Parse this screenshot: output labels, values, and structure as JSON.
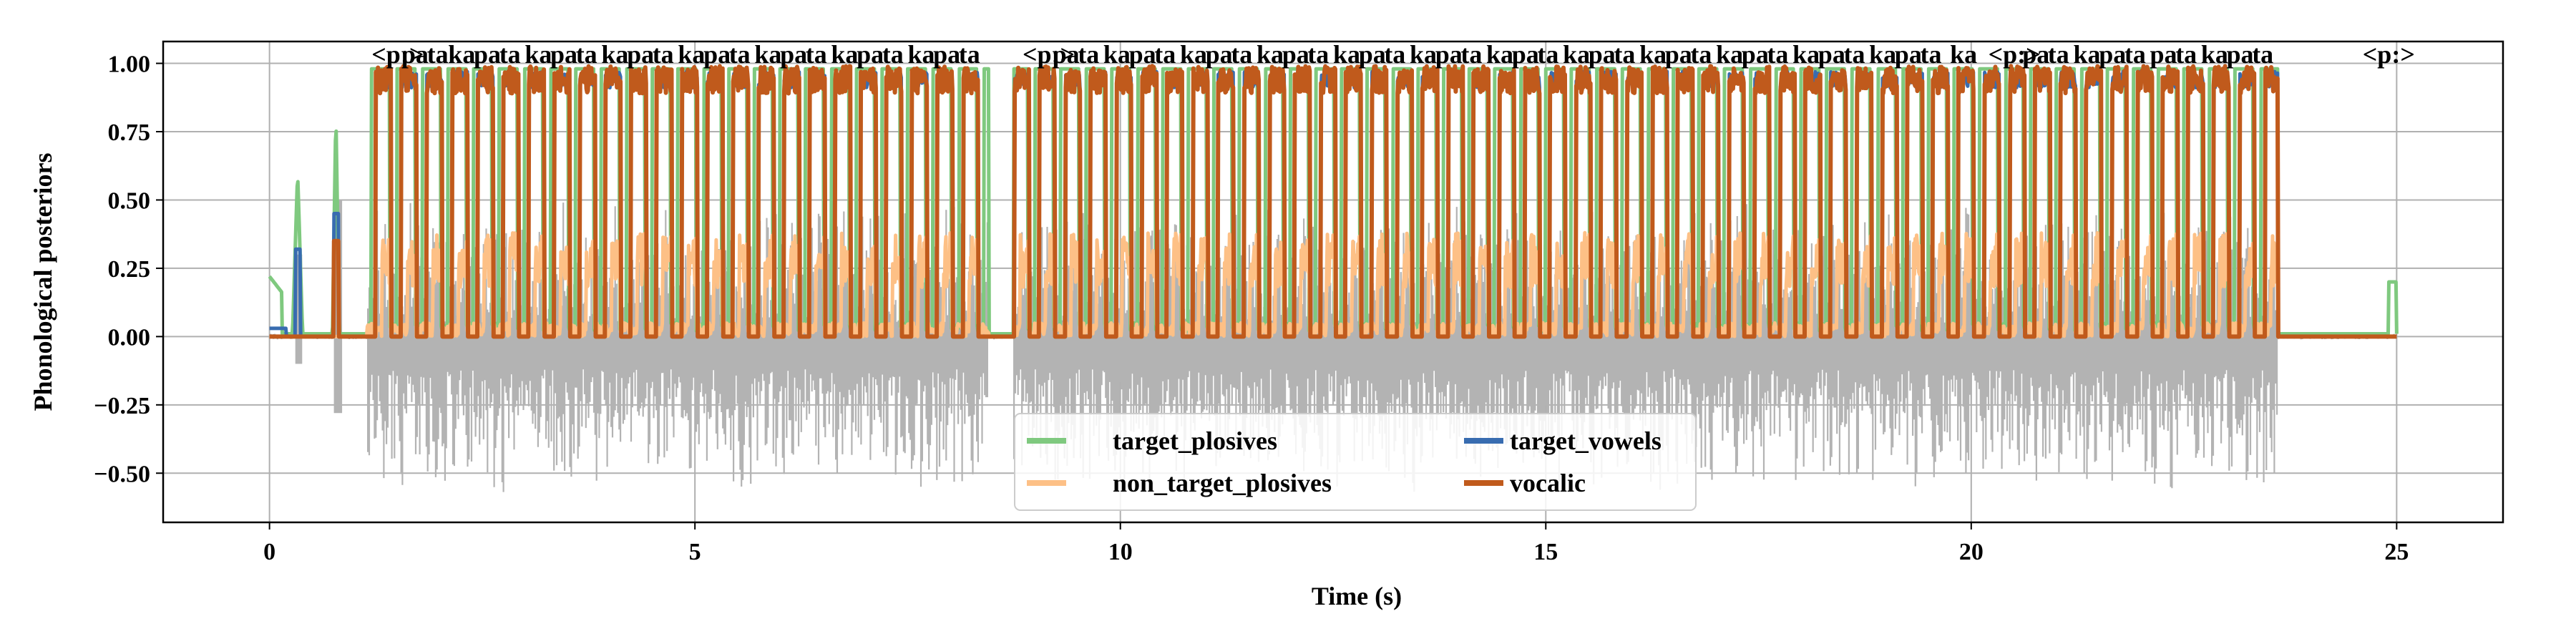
{
  "chart_data": {
    "type": "line",
    "xlabel": "Time (s)",
    "ylabel": "Phonological posteriors",
    "xlim": [
      -1.25,
      26.25
    ],
    "ylim": [
      -0.68,
      1.08
    ],
    "xticks": [
      0,
      5,
      10,
      15,
      20,
      25
    ],
    "xtick_labels": [
      "0",
      "5",
      "10",
      "15",
      "20",
      "25"
    ],
    "yticks": [
      -0.5,
      -0.25,
      0.0,
      0.25,
      0.5,
      0.75,
      1.0
    ],
    "ytick_labels": [
      "−0.50",
      "−0.25",
      "0.00",
      "0.25",
      "0.50",
      "0.75",
      "1.00"
    ],
    "grid": true,
    "legend_position": "bottom-center",
    "legend_columns": 2,
    "series": [
      {
        "name": "target_plosives",
        "color": "#7fc97f"
      },
      {
        "name": "non_target_plosives",
        "color": "#fdc086"
      },
      {
        "name": "target_vowels",
        "color": "#386cb0"
      },
      {
        "name": "vocalic",
        "color": "#c05a1c"
      }
    ],
    "waveform_color": "#b3b3b3",
    "waveform_range": [
      0.0,
      25.0
    ],
    "speech_segments": [
      [
        1.15,
        8.45
      ],
      [
        8.75,
        23.6
      ]
    ],
    "waveform_min_amplitude": -0.6,
    "waveform_max_amplitude": 0.7,
    "phone_labels": [
      {
        "t": 1.2,
        "text": "<p:>"
      },
      {
        "t": 1.55,
        "text": "pa"
      },
      {
        "t": 1.85,
        "text": "ta"
      },
      {
        "t": 2.1,
        "text": "ka"
      },
      {
        "t": 2.4,
        "text": "pa"
      },
      {
        "t": 2.7,
        "text": "ta"
      },
      {
        "t": 3.0,
        "text": "ka"
      },
      {
        "t": 3.3,
        "text": "pa"
      },
      {
        "t": 3.6,
        "text": "ta"
      },
      {
        "t": 3.9,
        "text": "ka"
      },
      {
        "t": 4.2,
        "text": "pa"
      },
      {
        "t": 4.5,
        "text": "ta"
      },
      {
        "t": 4.8,
        "text": "ka"
      },
      {
        "t": 5.1,
        "text": "pa"
      },
      {
        "t": 5.4,
        "text": "ta"
      },
      {
        "t": 5.7,
        "text": "ka"
      },
      {
        "t": 6.0,
        "text": "pa"
      },
      {
        "t": 6.3,
        "text": "ta"
      },
      {
        "t": 6.6,
        "text": "ka"
      },
      {
        "t": 6.9,
        "text": "pa"
      },
      {
        "t": 7.2,
        "text": "ta"
      },
      {
        "t": 7.5,
        "text": "ka"
      },
      {
        "t": 7.8,
        "text": "pa"
      },
      {
        "t": 8.1,
        "text": "ta"
      },
      {
        "t": 8.85,
        "text": "<p:>"
      },
      {
        "t": 9.2,
        "text": "pa"
      },
      {
        "t": 9.5,
        "text": "ta"
      },
      {
        "t": 9.8,
        "text": "ka"
      },
      {
        "t": 10.1,
        "text": "pa"
      },
      {
        "t": 10.4,
        "text": "ta"
      },
      {
        "t": 10.7,
        "text": "ka"
      },
      {
        "t": 11.0,
        "text": "pa"
      },
      {
        "t": 11.3,
        "text": "ta"
      },
      {
        "t": 11.6,
        "text": "ka"
      },
      {
        "t": 11.9,
        "text": "pa"
      },
      {
        "t": 12.2,
        "text": "ta"
      },
      {
        "t": 12.5,
        "text": "ka"
      },
      {
        "t": 12.8,
        "text": "pa"
      },
      {
        "t": 13.1,
        "text": "ta"
      },
      {
        "t": 13.4,
        "text": "ka"
      },
      {
        "t": 13.7,
        "text": "pa"
      },
      {
        "t": 14.0,
        "text": "ta"
      },
      {
        "t": 14.3,
        "text": "ka"
      },
      {
        "t": 14.6,
        "text": "pa"
      },
      {
        "t": 14.9,
        "text": "ta"
      },
      {
        "t": 15.2,
        "text": "ka"
      },
      {
        "t": 15.5,
        "text": "pa"
      },
      {
        "t": 15.8,
        "text": "ta"
      },
      {
        "t": 16.1,
        "text": "ka"
      },
      {
        "t": 16.4,
        "text": "pa"
      },
      {
        "t": 16.7,
        "text": "ta"
      },
      {
        "t": 17.0,
        "text": "ka"
      },
      {
        "t": 17.3,
        "text": "pa"
      },
      {
        "t": 17.6,
        "text": "ta"
      },
      {
        "t": 17.9,
        "text": "ka"
      },
      {
        "t": 18.2,
        "text": "pa"
      },
      {
        "t": 18.5,
        "text": "ta"
      },
      {
        "t": 18.8,
        "text": "ka"
      },
      {
        "t": 19.1,
        "text": "pa"
      },
      {
        "t": 19.4,
        "text": "ta"
      },
      {
        "t": 19.75,
        "text": "ka"
      },
      {
        "t": 20.2,
        "text": "<p:>"
      },
      {
        "t": 20.6,
        "text": "pa"
      },
      {
        "t": 20.9,
        "text": "ta"
      },
      {
        "t": 21.2,
        "text": "ka"
      },
      {
        "t": 21.5,
        "text": "pa"
      },
      {
        "t": 21.8,
        "text": "ta"
      },
      {
        "t": 22.1,
        "text": "pa"
      },
      {
        "t": 22.4,
        "text": "ta"
      },
      {
        "t": 22.7,
        "text": "ka"
      },
      {
        "t": 23.0,
        "text": "pa"
      },
      {
        "t": 23.3,
        "text": "ta"
      },
      {
        "t": 24.6,
        "text": "<p:>"
      }
    ]
  }
}
